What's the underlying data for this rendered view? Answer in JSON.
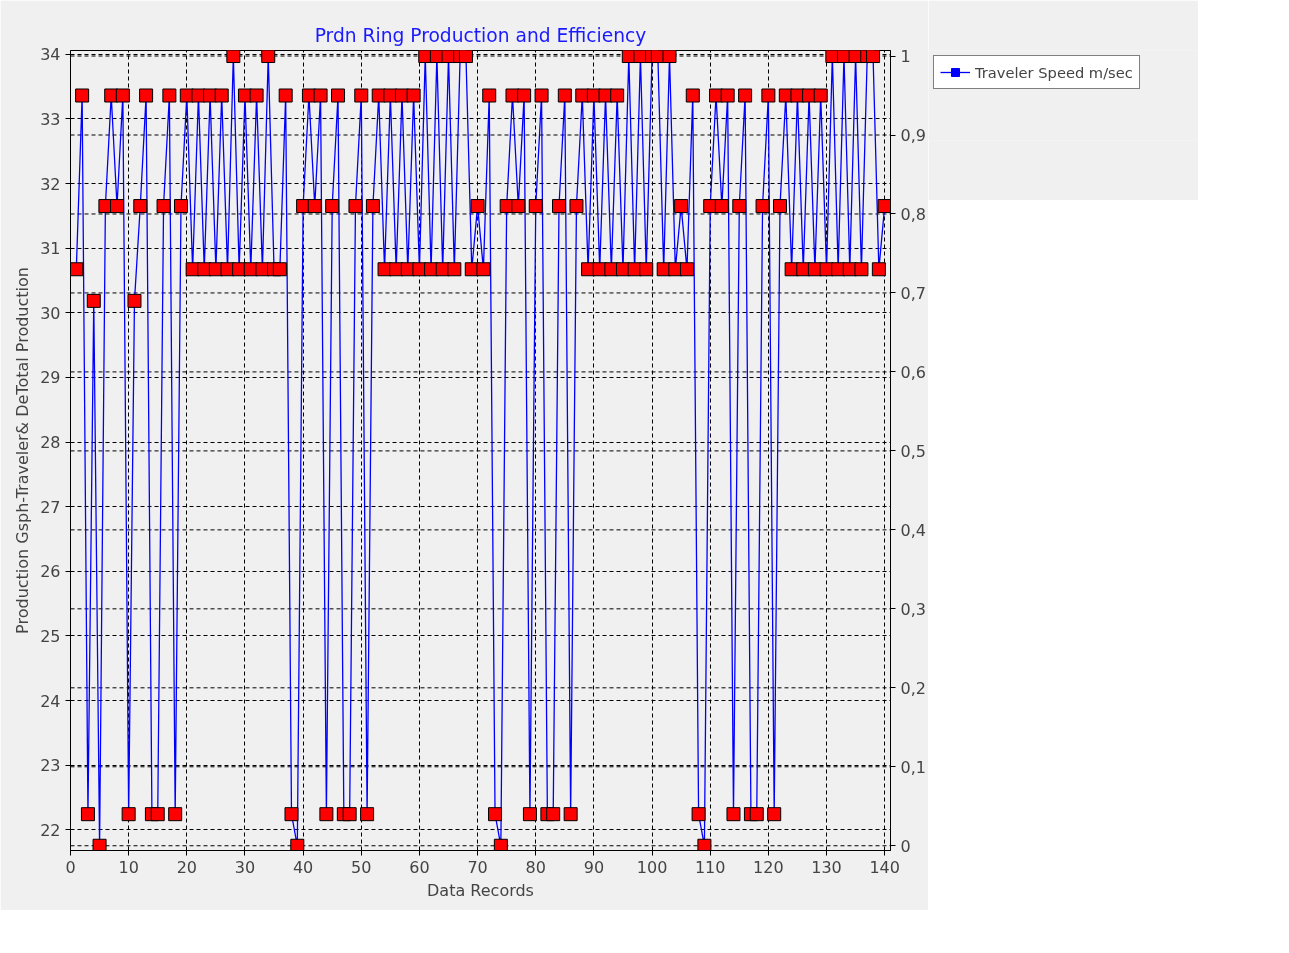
{
  "chart_data": {
    "type": "line",
    "title": "Prdn Ring Production and Efficiency",
    "xlabel": "Data Records",
    "ylabel": "Production Gsph-Traveler& DeTotal Production",
    "xlim": [
      0,
      141
    ],
    "xticks": [
      0,
      10,
      20,
      30,
      40,
      50,
      60,
      70,
      80,
      90,
      100,
      110,
      120,
      130,
      140
    ],
    "ylim": [
      21.68,
      34.06
    ],
    "yticks": [
      22,
      23,
      24,
      25,
      26,
      27,
      28,
      29,
      30,
      31,
      32,
      33,
      34
    ],
    "y2lim": [
      -0.006,
      1.007
    ],
    "y2ticks": [
      0,
      {
        "value": 0.1,
        "label": "0,1"
      },
      {
        "value": 0.2,
        "label": "0,2"
      },
      {
        "value": 0.3,
        "label": "0,3"
      },
      {
        "value": 0.4,
        "label": "0,4"
      },
      {
        "value": 0.5,
        "label": "0,5"
      },
      {
        "value": 0.6,
        "label": "0,6"
      },
      {
        "value": 0.7,
        "label": "0,7"
      },
      {
        "value": 0.8,
        "label": "0,8"
      },
      {
        "value": 0.9,
        "label": "0,9"
      },
      1
    ],
    "grid": true,
    "legend": "top right",
    "marker": "square",
    "line_style": "solid",
    "x": [
      1,
      2,
      3,
      4,
      5,
      6,
      7,
      8,
      9,
      10,
      11,
      12,
      13,
      14,
      15,
      16,
      17,
      18,
      19,
      20,
      21,
      22,
      23,
      24,
      25,
      26,
      27,
      28,
      29,
      30,
      31,
      32,
      33,
      34,
      35,
      36,
      37,
      38,
      39,
      40,
      41,
      42,
      43,
      44,
      45,
      46,
      47,
      48,
      49,
      50,
      51,
      52,
      53,
      54,
      55,
      56,
      57,
      58,
      59,
      60,
      61,
      62,
      63,
      64,
      65,
      66,
      67,
      68,
      69,
      70,
      71,
      72,
      73,
      74,
      75,
      76,
      77,
      78,
      79,
      80,
      81,
      82,
      83,
      84,
      85,
      86,
      87,
      88,
      89,
      90,
      91,
      92,
      93,
      94,
      95,
      96,
      97,
      98,
      99,
      100,
      101,
      102,
      103,
      104,
      105,
      106,
      107,
      108,
      109,
      110,
      111,
      112,
      113,
      114,
      115,
      116,
      117,
      118,
      119,
      120,
      121,
      122,
      123,
      124,
      125,
      126,
      127,
      128,
      129,
      130,
      131,
      132,
      133,
      134,
      135,
      136,
      137,
      138,
      139,
      140
    ],
    "series": [
      {
        "name": "Traveler Speed m/sec",
        "color": "#0000ff",
        "axis": "y2",
        "colors": [
          "#ff0000",
          "#ff0000",
          "#ff0000",
          "#ff0000",
          "#ff0000",
          "#ff0000",
          "#ff0000",
          "#ff0000",
          "#ff0000",
          "#ff0000",
          "#ff0000",
          "#ff0000",
          "#ff0000",
          "#ff0000",
          "#ff0000",
          "#ff0000",
          "#ff0000",
          "#ff0000",
          "#ff0000",
          "#ff0000",
          "#ff0000",
          "#ff0000",
          "#ff0000",
          "#ff0000",
          "#ff0000",
          "#ff0000",
          "#ff0000",
          "#ff0000",
          "#ff0000",
          "#ff0000",
          "#ff0000",
          "#ff0000",
          "#ff0000",
          "#ff0000",
          "#ff0000",
          "#ff0000",
          "#ff0000",
          "#ff0000",
          "#ff0000",
          "#ff0000",
          "#ff0000",
          "#ff0000",
          "#ff0000",
          "#ff0000",
          "#ff0000",
          "#ff0000",
          "#ff0000",
          "#ff0000",
          "#ff0000",
          "#ff0000",
          "#ff0000",
          "#ff0000",
          "#ff0000",
          "#ff0000",
          "#ff0000",
          "#ff0000",
          "#ff0000",
          "#ff0000",
          "#ff0000",
          "#ff0000",
          "#ff0000",
          "#ff0000",
          "#ff0000",
          "#ff0000",
          "#ff0000",
          "#ff0000",
          "#ff0000",
          "#ff0000",
          "#ff0000",
          "#ff0000",
          "#ff0000",
          "#ff0000",
          "#ff0000",
          "#ff0000",
          "#ff0000",
          "#ff0000",
          "#ff0000",
          "#ff0000",
          "#ff0000",
          "#ff0000",
          "#ff0000",
          "#ff0000",
          "#ff0000",
          "#ff0000",
          "#ff0000",
          "#ff0000",
          "#ff0000",
          "#ff0000",
          "#ff0000",
          "#ff0000",
          "#ff0000",
          "#ff0000",
          "#ff0000",
          "#ff0000",
          "#ff0000",
          "#ff0000",
          "#ff0000",
          "#ff0000",
          "#ff0000",
          "#ff0000",
          "#ff0000",
          "#ff0000",
          "#ff0000",
          "#ff0000",
          "#ff0000",
          "#ff0000",
          "#ff0000",
          "#ff0000",
          "#ff0000",
          "#ff0000",
          "#ff0000",
          "#ff0000",
          "#ff0000",
          "#ff0000",
          "#ff0000",
          "#ff0000",
          "#ff0000",
          "#ff0000",
          "#ff0000",
          "#ff0000",
          "#ff0000",
          "#ff0000",
          "#ff0000",
          "#ff0000",
          "#ff0000",
          "#ff0000",
          "#ff0000",
          "#ff0000",
          "#ff0000",
          "#ff0000",
          "#ff0000",
          "#ff0000",
          "#ff0000",
          "#ff0000",
          "#ff0000",
          "#ff0000",
          "#ff0000",
          "#ff0000",
          "#ff0000",
          "#ff0000"
        ],
        "values": [
          0.73,
          0.95,
          0.04,
          0.69,
          0,
          0.81,
          0.95,
          0.81,
          0.95,
          0.04,
          0.69,
          0.81,
          0.95,
          0.04,
          0.04,
          0.81,
          0.95,
          0.04,
          0.81,
          0.95,
          0.73,
          0.95,
          0.73,
          0.95,
          0.73,
          0.95,
          0.73,
          1,
          0.73,
          0.95,
          0.73,
          0.95,
          0.73,
          1,
          0.73,
          0.73,
          0.95,
          0.04,
          0,
          0.81,
          0.95,
          0.81,
          0.95,
          0.04,
          0.81,
          0.95,
          0.04,
          0.04,
          0.81,
          0.95,
          0.04,
          0.81,
          0.95,
          0.73,
          0.95,
          0.73,
          0.95,
          0.73,
          0.95,
          0.73,
          1,
          0.73,
          1,
          0.73,
          1,
          0.73,
          1,
          1,
          0.73,
          0.81,
          0.73,
          0.95,
          0.04,
          0,
          0.81,
          0.95,
          0.81,
          0.95,
          0.04,
          0.81,
          0.95,
          0.04,
          0.04,
          0.81,
          0.95,
          0.04,
          0.81,
          0.95,
          0.73,
          0.95,
          0.73,
          0.95,
          0.73,
          0.95,
          0.73,
          1,
          0.73,
          1,
          0.73,
          1,
          1,
          0.73,
          1,
          0.73,
          0.81,
          0.73,
          0.95,
          0.04,
          0,
          0.81,
          0.95,
          0.81,
          0.95,
          0.04,
          0.81,
          0.95,
          0.04,
          0.04,
          0.81,
          0.95,
          0.04,
          0.81,
          0.95,
          0.73,
          0.95,
          0.73,
          0.95,
          0.73,
          0.95,
          0.73,
          1,
          0.73,
          1,
          0.73,
          1,
          0.73,
          1,
          1,
          0.73,
          0.81
        ]
      }
    ]
  }
}
